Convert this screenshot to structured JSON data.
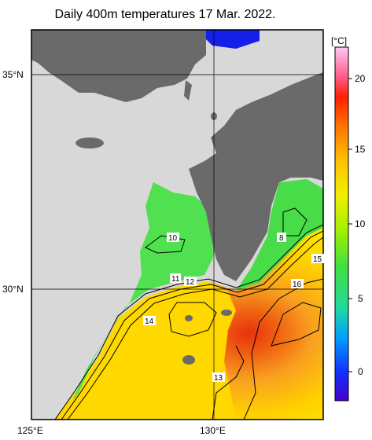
{
  "title": "Daily 400m temperatures 17 Mar. 2022.",
  "axes": {
    "lat_labels": [
      "35°N",
      "30°N"
    ],
    "lon_labels": [
      "125°E",
      "130°E"
    ]
  },
  "colorbar": {
    "unit": "[°C]",
    "ticks": [
      "20",
      "15",
      "10",
      "5",
      "0"
    ]
  },
  "contour_labels": [
    "10",
    "8",
    "15",
    "16",
    "11",
    "12",
    "14",
    "13"
  ],
  "colors": {
    "land": "#6a6a6a",
    "no_data": "#d8d8d8",
    "grid": "#000000",
    "frame": "#000000"
  }
}
